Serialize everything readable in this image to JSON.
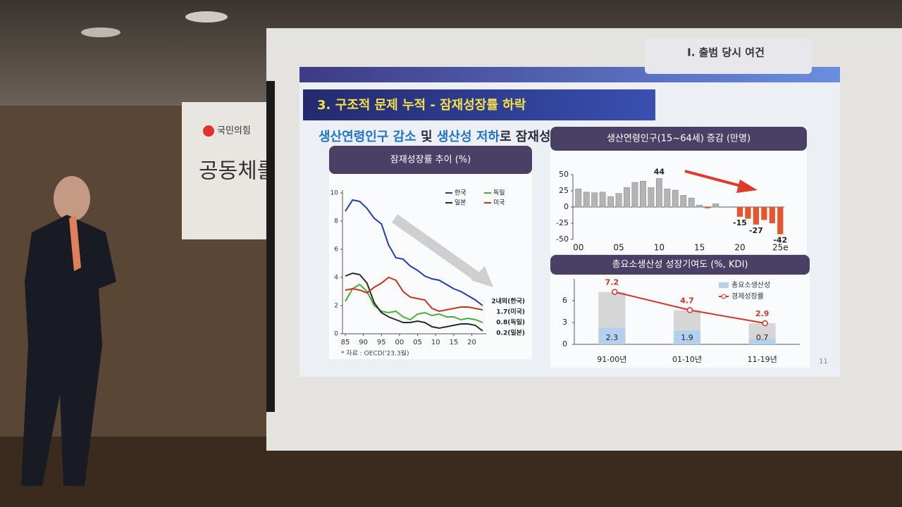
{
  "banner": {
    "logo": "국민의힘",
    "text": "공동체를"
  },
  "slide": {
    "section": "I. 출범 당시 여건",
    "title": "3. 구조적 문제 누적 - 잠재성장률 하락",
    "headline": {
      "part1": "생산연령인구 감소",
      "part2": "및",
      "part3": "생산성 저하",
      "part4": "로 잠재성장률 하락"
    },
    "page": "11",
    "source": "* 자료 : OECD('23.3월)"
  },
  "chart_data": [
    {
      "type": "line",
      "title": "잠재성장률 추이 (%)",
      "x": [
        1985,
        1987,
        1989,
        1991,
        1993,
        1995,
        1997,
        1999,
        2001,
        2003,
        2005,
        2007,
        2009,
        2011,
        2013,
        2015,
        2017,
        2019,
        2021,
        2023
      ],
      "xlim": [
        1985,
        2024
      ],
      "xticks": [
        {
          "value": 1985,
          "label": "85"
        },
        {
          "value": 1990,
          "label": "90"
        },
        {
          "value": 1995,
          "label": "95"
        },
        {
          "value": 2000,
          "label": "00"
        },
        {
          "value": 2005,
          "label": "05"
        },
        {
          "value": 2010,
          "label": "10"
        },
        {
          "value": 2015,
          "label": "15"
        },
        {
          "value": 2020,
          "label": "20"
        }
      ],
      "ylim": [
        0,
        10
      ],
      "yticks": [
        0,
        2,
        4,
        6,
        8,
        10
      ],
      "series": [
        {
          "name": "한국",
          "color": "#1f3fb0",
          "end_label": "2내외(한국)",
          "values": [
            8.7,
            9.5,
            9.4,
            8.9,
            8.2,
            7.8,
            6.3,
            5.4,
            5.3,
            4.8,
            4.5,
            4.1,
            3.9,
            3.8,
            3.5,
            3.2,
            3.0,
            2.7,
            2.4,
            2.0
          ]
        },
        {
          "name": "독일",
          "color": "#4daa3c",
          "end_label": "0.8(독일)",
          "values": [
            2.3,
            3.2,
            3.5,
            3.0,
            2.0,
            1.6,
            1.5,
            1.6,
            1.2,
            1.0,
            1.4,
            1.5,
            1.3,
            1.4,
            1.2,
            1.2,
            1.0,
            1.1,
            1.0,
            0.8
          ]
        },
        {
          "name": "일본",
          "color": "#2a2a2a",
          "end_label": "0.2(일본)",
          "values": [
            4.1,
            4.3,
            4.2,
            3.6,
            2.2,
            1.5,
            1.2,
            1.0,
            0.8,
            0.8,
            0.9,
            0.8,
            0.5,
            0.4,
            0.5,
            0.6,
            0.7,
            0.7,
            0.6,
            0.2
          ]
        },
        {
          "name": "미국",
          "color": "#c8321e",
          "end_label": "1.7(미국)",
          "values": [
            3.1,
            3.2,
            3.1,
            2.9,
            3.3,
            3.6,
            4.0,
            3.8,
            3.0,
            2.6,
            2.5,
            2.4,
            1.8,
            1.6,
            1.7,
            1.8,
            1.9,
            1.9,
            1.8,
            1.7
          ]
        }
      ]
    },
    {
      "type": "bar",
      "title": "생산연령인구(15~64세) 증감 (만명)",
      "categories": [
        "00",
        null,
        null,
        null,
        null,
        "05",
        null,
        null,
        null,
        null,
        "10",
        null,
        null,
        null,
        null,
        "15",
        null,
        null,
        null,
        null,
        "20",
        null,
        null,
        null,
        null,
        "25e"
      ],
      "values": [
        28,
        23,
        22,
        23,
        16,
        21,
        30,
        38,
        40,
        30,
        44,
        28,
        26,
        18,
        14,
        3,
        -2,
        5,
        0,
        0,
        -15,
        -18,
        -27,
        -20,
        -25,
        -42
      ],
      "labeled": [
        10,
        20,
        22,
        25
      ],
      "color": "#b4b4b4",
      "negative_color": "#e4572e",
      "ylim": [
        -50,
        50
      ],
      "yticks": [
        50,
        25,
        0,
        -25,
        -50
      ]
    },
    {
      "type": "bar_line",
      "title": "총요소생산성 성장기여도 (%, KDI)",
      "categories": [
        "91-00년",
        "01-10년",
        "11-19년"
      ],
      "ylim": [
        0,
        9
      ],
      "yticks": [
        0,
        3,
        6
      ],
      "total_bar_color": "#d6d6d6",
      "series": [
        {
          "name": "총요소생산성",
          "color": "#b3d0ee",
          "values": [
            2.3,
            1.9,
            0.7
          ]
        },
        {
          "name": "경제성장률",
          "color": "#d3352a",
          "values": [
            7.2,
            4.7,
            2.9
          ]
        }
      ]
    }
  ]
}
